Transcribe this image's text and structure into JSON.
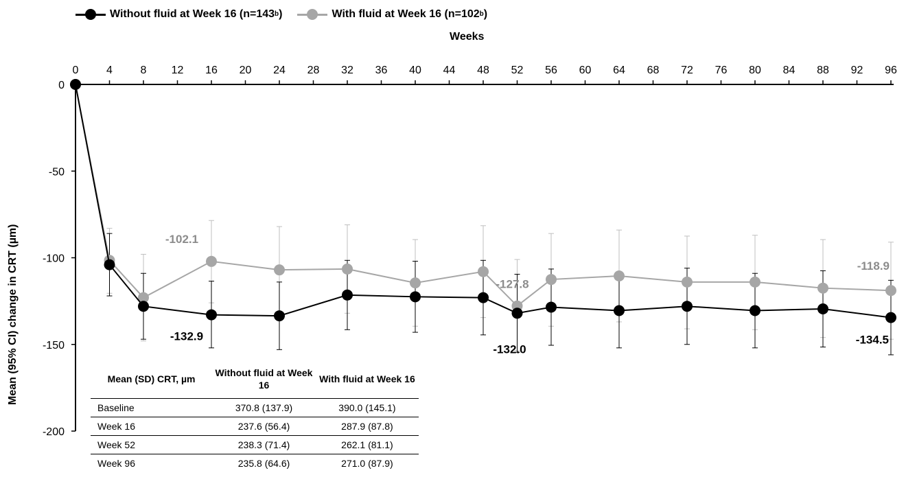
{
  "legend": {
    "series1_label": "Without fluid at Week 16 (n=143",
    "series1_sup": "b",
    "series1_close": ")",
    "series2_label": "With fluid at Week 16 (n=102",
    "series2_sup": "b",
    "series2_close": ")"
  },
  "axes": {
    "x_title": "Weeks",
    "y_title": "Mean (95% CI) change in CRT (µm)"
  },
  "colors": {
    "without": "#000000",
    "with": "#a6a6a6",
    "with_error": "#bfbfbf",
    "with_label": "#8c8c8c"
  },
  "chart_data": {
    "type": "line",
    "xlabel": "Weeks",
    "ylabel": "Mean (95% CI) change in CRT (µm)",
    "xlim": [
      0,
      96
    ],
    "ylim": [
      -200,
      0
    ],
    "x_ticks": [
      0,
      4,
      8,
      12,
      16,
      20,
      24,
      28,
      32,
      36,
      40,
      44,
      48,
      52,
      56,
      60,
      64,
      68,
      72,
      76,
      80,
      84,
      88,
      92,
      96
    ],
    "y_ticks": [
      0,
      -50,
      -100,
      -150,
      -200
    ],
    "x_axis_position": "top",
    "grid": false,
    "legend_position": "top-left",
    "series": [
      {
        "name": "Without fluid at Week 16 (n=143b)",
        "color": "#000000",
        "x": [
          0,
          4,
          8,
          16,
          24,
          32,
          40,
          48,
          52,
          56,
          64,
          72,
          80,
          88,
          96
        ],
        "y": [
          0,
          -104,
          -128,
          -132.9,
          -133.5,
          -121.5,
          -122.5,
          -123,
          -132.0,
          -128.5,
          -130.5,
          -128,
          -130.5,
          -129.5,
          -134.5
        ],
        "ci_low": [
          0,
          -122,
          -147,
          -152,
          -153,
          -141.5,
          -143,
          -144.5,
          -154.5,
          -150.5,
          -152,
          -150,
          -152,
          -151.5,
          -156
        ],
        "ci_high": [
          0,
          -86,
          -109,
          -113.5,
          -114,
          -101.5,
          -102,
          -101.5,
          -109.5,
          -106.5,
          -109,
          -106,
          -109,
          -107.5,
          -113
        ]
      },
      {
        "name": "With fluid at Week 16 (n=102b)",
        "color": "#a6a6a6",
        "x": [
          0,
          4,
          8,
          16,
          24,
          32,
          40,
          48,
          52,
          56,
          64,
          72,
          80,
          88,
          96
        ],
        "y": [
          0,
          -101.5,
          -123,
          -102.1,
          -107,
          -106.5,
          -114.5,
          -108,
          -127.8,
          -112.5,
          -110.5,
          -114,
          -114,
          -117.5,
          -118.9
        ],
        "ci_low": [
          0,
          -120.5,
          -148,
          -126,
          -132,
          -132,
          -139.5,
          -134.5,
          -153.5,
          -139.5,
          -137,
          -141,
          -141.5,
          -146,
          -147
        ],
        "ci_high": [
          0,
          -83,
          -98,
          -78.5,
          -82,
          -81,
          -89.5,
          -81.5,
          -101,
          -86,
          -84,
          -87.5,
          -87,
          -89.5,
          -91
        ]
      }
    ],
    "annotations": [
      {
        "text": "-102.1",
        "series": 1,
        "x": 16
      },
      {
        "text": "-127.8",
        "series": 1,
        "x": 52
      },
      {
        "text": "-118.9",
        "series": 1,
        "x": 96
      },
      {
        "text": "-132.9",
        "series": 0,
        "x": 16
      },
      {
        "text": "-132.0",
        "series": 0,
        "x": 52
      },
      {
        "text": "-134.5",
        "series": 0,
        "x": 96
      }
    ]
  },
  "table": {
    "headers": [
      "Mean (SD) CRT, µm",
      "Without fluid at Week 16",
      "With fluid at Week 16"
    ],
    "rows": [
      {
        "label": "Baseline",
        "without": "370.8 (137.9)",
        "with": "390.0 (145.1)"
      },
      {
        "label": "Week 16",
        "without": "237.6 (56.4)",
        "with": "287.9 (87.8)"
      },
      {
        "label": "Week 52",
        "without": "238.3 (71.4)",
        "with": "262.1 (81.1)"
      },
      {
        "label": "Week 96",
        "without": "235.8 (64.6)",
        "with": "271.0 (87.9)"
      }
    ]
  }
}
